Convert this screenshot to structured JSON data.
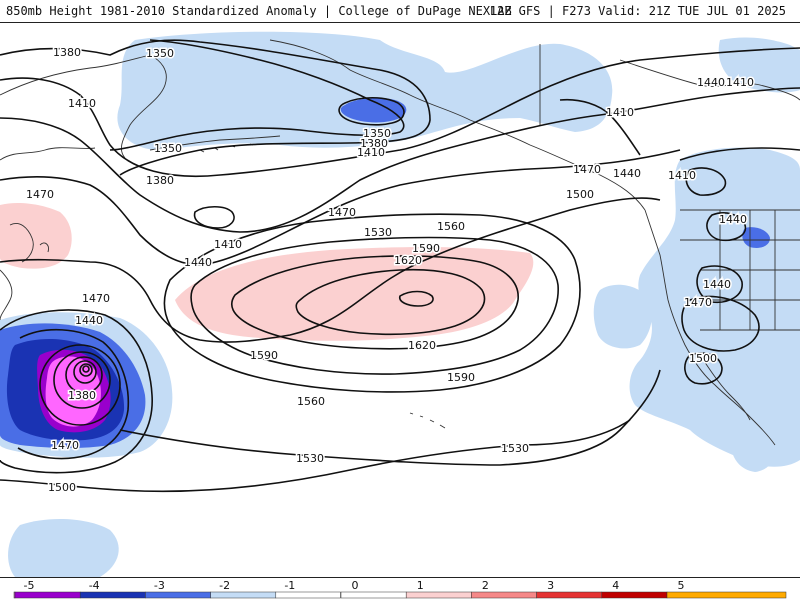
{
  "header": {
    "title_left": "850mb Height 1981-2010 Standardized Anomaly | College of DuPage NEXLAB",
    "title_right": "12Z GFS | F273 Valid: 21Z TUE JUL 01 2025"
  },
  "colors": {
    "neg5": "#ff66ff",
    "neg4": "#9900cc",
    "neg3": "#1a33b3",
    "neg2": "#4a6ee6",
    "neg1": "#c4dcf5",
    "zero": "#ffffff",
    "pos1": "#fbd0d0",
    "pos2": "#f58888",
    "pos3": "#e53333",
    "pos4": "#c00000",
    "pos5": "#ffaa00",
    "contour": "#111111",
    "coast": "#333333"
  },
  "contour_labels": [
    {
      "id": "c1380a",
      "text": "1380"
    },
    {
      "id": "c1350a",
      "text": "1350"
    },
    {
      "id": "c1410a",
      "text": "1410"
    },
    {
      "id": "c1350b",
      "text": "1350"
    },
    {
      "id": "c1380b",
      "text": "1380"
    },
    {
      "id": "c1470a",
      "text": "1470"
    },
    {
      "id": "c1410b",
      "text": "1410"
    },
    {
      "id": "c1440a",
      "text": "1440"
    },
    {
      "id": "c1470b",
      "text": "1470"
    },
    {
      "id": "c1530a",
      "text": "1530"
    },
    {
      "id": "c1560a",
      "text": "1560"
    },
    {
      "id": "c1590a",
      "text": "1590"
    },
    {
      "id": "c1620a",
      "text": "1620"
    },
    {
      "id": "c1590b",
      "text": "1590"
    },
    {
      "id": "c1620b",
      "text": "1620"
    },
    {
      "id": "c1590c",
      "text": "1590"
    },
    {
      "id": "c1560b",
      "text": "1560"
    },
    {
      "id": "c1530b",
      "text": "1530"
    },
    {
      "id": "c1530c",
      "text": "1530"
    },
    {
      "id": "c1470c",
      "text": "1470"
    },
    {
      "id": "c1440b",
      "text": "1440"
    },
    {
      "id": "c1380c",
      "text": "1380"
    },
    {
      "id": "c1470d",
      "text": "1470"
    },
    {
      "id": "c1500a",
      "text": "1500"
    },
    {
      "id": "c1350c",
      "text": "1350"
    },
    {
      "id": "c1380d",
      "text": "1380"
    },
    {
      "id": "c1410c",
      "text": "1410"
    },
    {
      "id": "c1470e",
      "text": "1470"
    },
    {
      "id": "c1440c",
      "text": "1440"
    },
    {
      "id": "c1500b",
      "text": "1500"
    },
    {
      "id": "c1410d",
      "text": "1410"
    },
    {
      "id": "c1410e",
      "text": "1410"
    },
    {
      "id": "c1440d",
      "text": "1440"
    },
    {
      "id": "c1470f",
      "text": "1470"
    },
    {
      "id": "c1500c",
      "text": "1500"
    },
    {
      "id": "c1440e",
      "text": "1440"
    },
    {
      "id": "c1440f",
      "text": "1440"
    },
    {
      "id": "c1410f",
      "text": "1410"
    }
  ],
  "legend": {
    "ticks": [
      "-5",
      "-4",
      "-3",
      "-2",
      "-1",
      "0",
      "1",
      "2",
      "3",
      "4",
      "5"
    ]
  }
}
